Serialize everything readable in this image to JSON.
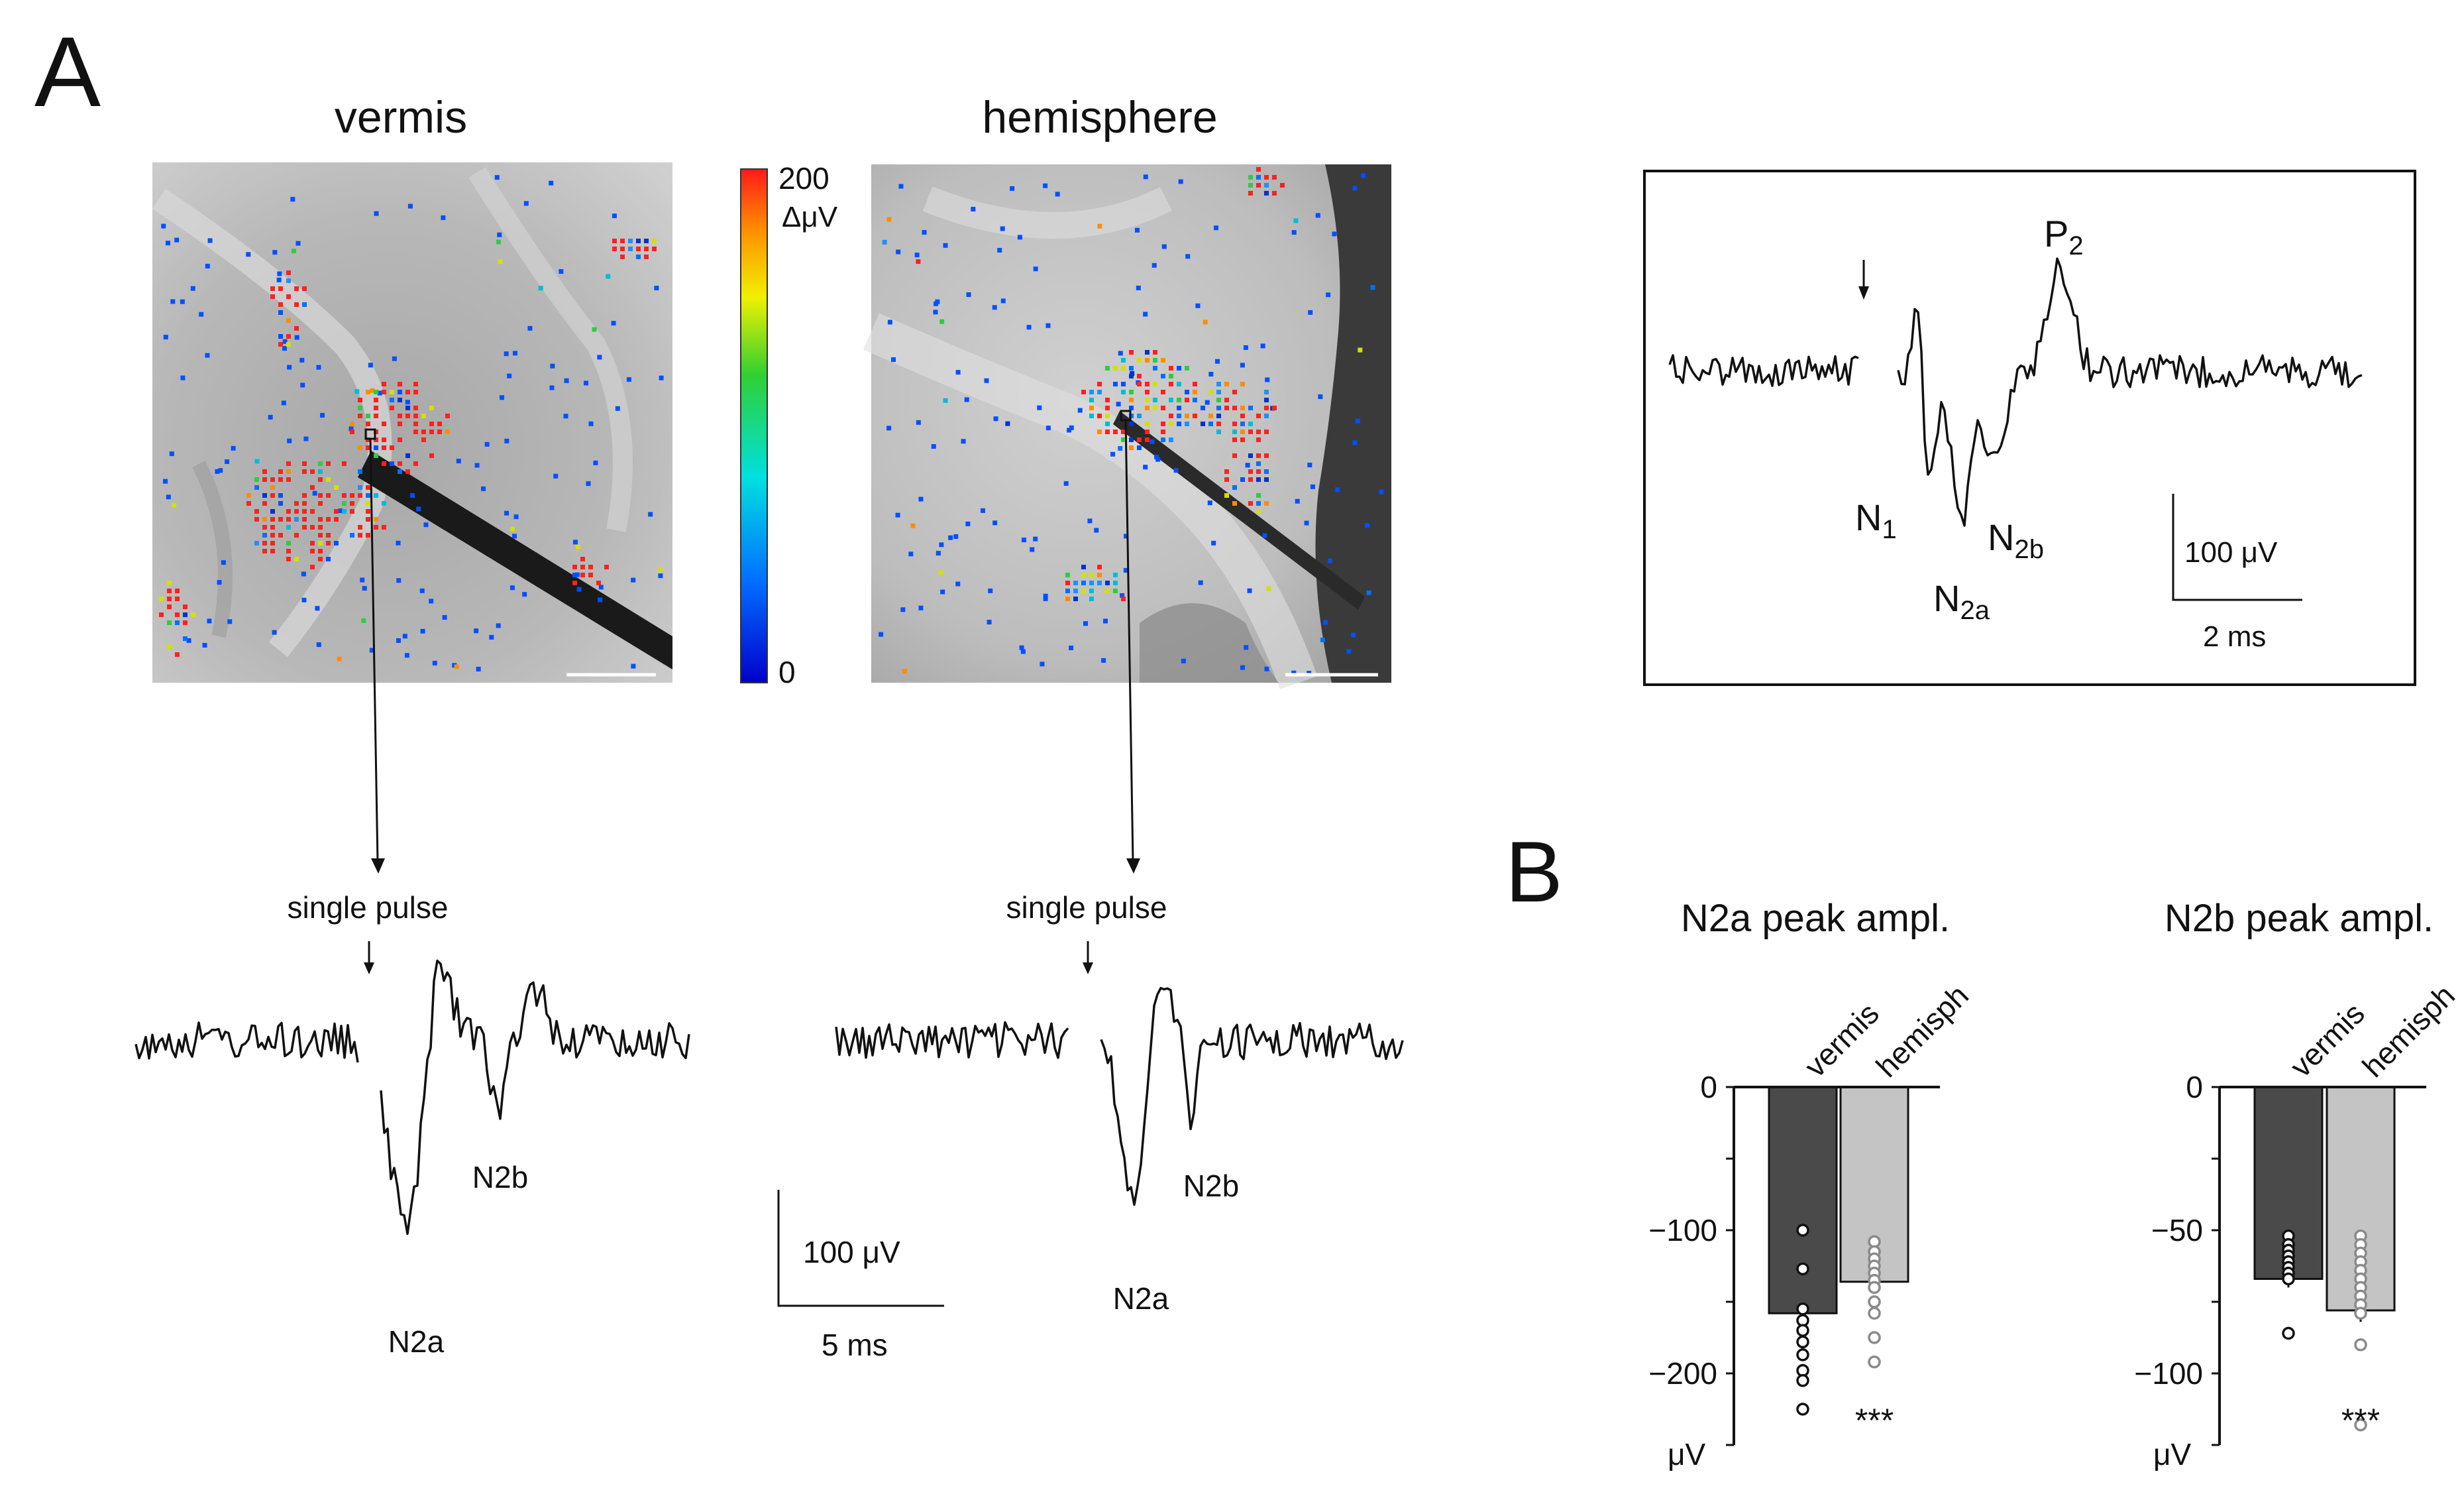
{
  "panel_a": {
    "letter": "A",
    "vermis_title": "vermis",
    "hemisphere_title": "hemisphere",
    "colorbar": {
      "max_label": "200",
      "unit": "ΔμV",
      "min_label": "0"
    },
    "stim_label": "single pulse",
    "vermis_trace": {
      "n2a": "N2a",
      "n2b": "N2b"
    },
    "hemisphere_trace": {
      "n2a": "N2a",
      "n2b": "N2b"
    },
    "scale": {
      "amplitude": "100 μV",
      "time": "5 ms"
    },
    "inset": {
      "n1": "N",
      "n1_sub": "1",
      "n2a": "N",
      "n2a_sub": "2a",
      "n2b": "N",
      "n2b_sub": "2b",
      "p2": "P",
      "p2_sub": "2",
      "scale_amplitude": "100 μV",
      "scale_time": "2 ms"
    }
  },
  "panel_b": {
    "letter": "B"
  },
  "colors": {
    "vermis_bar": "#4a4a4a",
    "hemisphere_bar": "#c4c4c4",
    "trace": "#111111"
  },
  "chart_data": [
    {
      "type": "bar",
      "title": "N2a peak ampl.",
      "categories": [
        "vermis",
        "hemisph"
      ],
      "values": [
        -158,
        -136
      ],
      "errors": [
        5,
        6
      ],
      "points": [
        [
          -100,
          -127,
          -155,
          -163,
          -170,
          -178,
          -187,
          -198,
          -205,
          -225
        ],
        [
          -108,
          -115,
          -120,
          -125,
          -130,
          -135,
          -140,
          -150,
          -158,
          -175,
          -192
        ]
      ],
      "ylabel": "μV",
      "ylim": [
        -250,
        0
      ],
      "yticks": [
        0,
        -100,
        -200
      ],
      "significance": "***"
    },
    {
      "type": "bar",
      "title": "N2b peak ampl.",
      "categories": [
        "vermis",
        "hemisph"
      ],
      "values": [
        -67,
        -78
      ],
      "errors": [
        3,
        4
      ],
      "points": [
        [
          -52,
          -55,
          -57,
          -59,
          -61,
          -63,
          -65,
          -67,
          -86
        ],
        [
          -52,
          -55,
          -58,
          -61,
          -64,
          -67,
          -70,
          -73,
          -76,
          -79,
          -90,
          -118
        ]
      ],
      "ylabel": "μV",
      "ylim": [
        -125,
        0
      ],
      "yticks": [
        0,
        -50,
        -100
      ],
      "significance": "***"
    }
  ]
}
